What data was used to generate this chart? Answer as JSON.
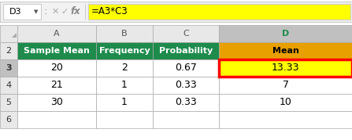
{
  "formula_bar": {
    "cell_ref": "D3",
    "formula": "=A3*C3",
    "formula_bg": "#FFFF00"
  },
  "col_letters": [
    "A",
    "B",
    "C",
    "D"
  ],
  "col_headers": [
    "Sample Mean",
    "Frequency",
    "Probability",
    "Mean"
  ],
  "col_header_bg": "#1E8B4C",
  "col_header_fg": "#FFFFFF",
  "mean_header_bg": "#E8A000",
  "mean_header_fg": "#000000",
  "data": [
    [
      "20",
      "2",
      "0.67",
      "13.33"
    ],
    [
      "21",
      "1",
      "0.33",
      "7"
    ],
    [
      "30",
      "1",
      "0.33",
      "10"
    ]
  ],
  "row_numbers": [
    "2",
    "3",
    "4",
    "5",
    "6"
  ],
  "selected_cell_bg": "#FFFF00",
  "selected_cell_border": "#FF0000",
  "col_d_header_bg": "#C0C0C0",
  "row_num_selected_bg": "#C0C0C0",
  "header_bg": "#E8E8E8",
  "white": "#FFFFFF",
  "grid_color": "#AAAAAA",
  "fb_bg": "#F2F2F2",
  "fb_border": "#CCCCCC"
}
